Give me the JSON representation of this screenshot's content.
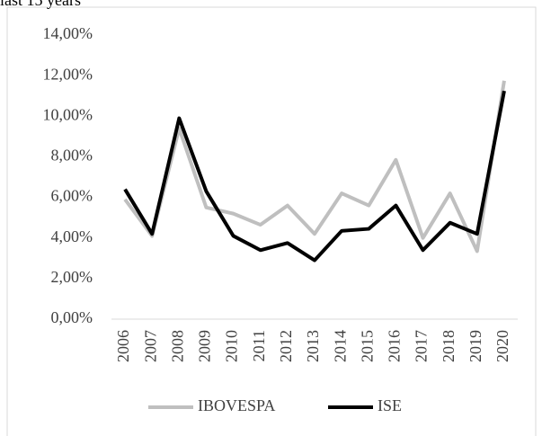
{
  "chart_data": {
    "type": "line",
    "title": "last 15 years",
    "categories": [
      "2006",
      "2007",
      "2008",
      "2009",
      "2010",
      "2011",
      "2012",
      "2013",
      "2014",
      "2015",
      "2016",
      "2017",
      "2018",
      "2019",
      "2020"
    ],
    "series": [
      {
        "name": "IBOVESPA",
        "color": "#bfbfbf",
        "values": [
          5.9,
          4.1,
          9.4,
          5.5,
          5.2,
          4.65,
          5.6,
          4.2,
          6.2,
          5.6,
          7.85,
          4.0,
          6.2,
          3.35,
          11.75
        ]
      },
      {
        "name": "ISE",
        "color": "#000000",
        "values": [
          6.4,
          4.2,
          9.9,
          6.3,
          4.1,
          3.4,
          3.75,
          2.9,
          4.35,
          4.45,
          5.6,
          3.4,
          4.75,
          4.2,
          11.25
        ]
      }
    ],
    "ylim": [
      0,
      14
    ],
    "yticks": [
      {
        "value": 0,
        "label": "0,00%"
      },
      {
        "value": 2,
        "label": "2,00%"
      },
      {
        "value": 4,
        "label": "4,00%"
      },
      {
        "value": 6,
        "label": "6,00%"
      },
      {
        "value": 8,
        "label": "8,00%"
      },
      {
        "value": 10,
        "label": "10,00%"
      },
      {
        "value": 12,
        "label": "12,00%"
      },
      {
        "value": 14,
        "label": "14,00%"
      }
    ],
    "grid": false,
    "legend": "bottom"
  }
}
